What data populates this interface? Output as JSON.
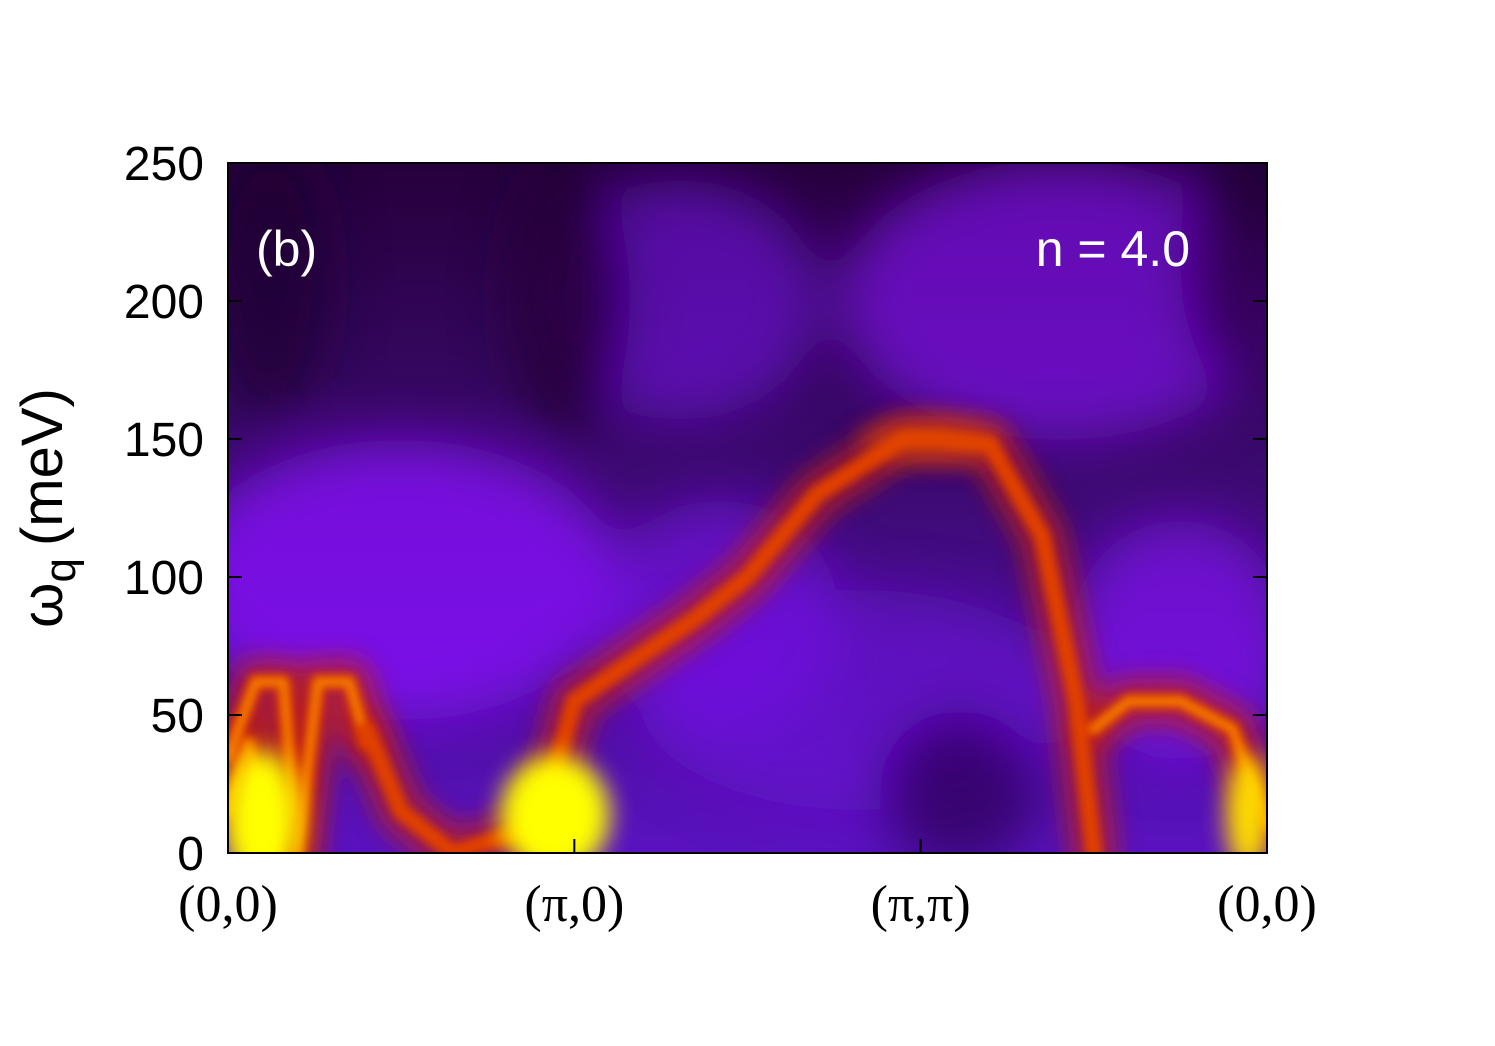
{
  "chart_data": {
    "type": "heatmap",
    "ylabel": "ω",
    "ylabel_sub": "q",
    "ylabel_unit": "(meV)",
    "ylim": [
      0,
      250
    ],
    "yticks": [
      0,
      50,
      100,
      150,
      200,
      250
    ],
    "ytick_labels": [
      "0",
      "50",
      "100",
      "150",
      "200",
      "250"
    ],
    "x_path": [
      0,
      1,
      2,
      3
    ],
    "xtick_labels": [
      "(0,0)",
      "(π,0)",
      "(π,π)",
      "(0,0)"
    ],
    "annotations": {
      "panel": "(b)",
      "filling": "n = 4.0"
    },
    "colormap": [
      "#1a0022",
      "#3a0a5a",
      "#5b10b0",
      "#8a10ff",
      "#c02010",
      "#e04000",
      "#ff9000",
      "#ffff00"
    ],
    "bands": [
      {
        "x": [
          0.0,
          0.08,
          0.16,
          0.2
        ],
        "y": [
          35,
          62,
          62,
          0
        ]
      },
      {
        "x": [
          0.0,
          0.06,
          0.12
        ],
        "y": [
          15,
          40,
          0
        ]
      },
      {
        "x": [
          0.2,
          0.26,
          0.35,
          0.4
        ],
        "y": [
          0,
          62,
          62,
          40
        ]
      },
      {
        "x": [
          0.4,
          0.5,
          0.65,
          0.9,
          1.0,
          1.15,
          1.35,
          1.5,
          1.7,
          1.95,
          2.05,
          2.2,
          2.35,
          2.45,
          2.5
        ],
        "y": [
          45,
          15,
          0,
          10,
          55,
          68,
          85,
          100,
          130,
          150,
          150,
          148,
          115,
          55,
          0
        ]
      },
      {
        "x": [
          2.5,
          2.6,
          2.75,
          2.9,
          3.0
        ],
        "y": [
          45,
          55,
          55,
          45,
          10
        ]
      }
    ]
  }
}
